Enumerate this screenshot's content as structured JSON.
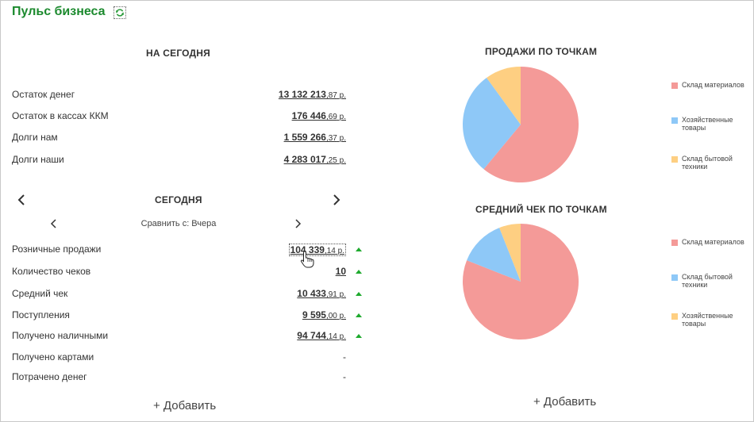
{
  "header": {
    "title": "Пульс бизнеса",
    "refresh_icon": "refresh-icon"
  },
  "balances": {
    "title": "НА СЕГОДНЯ",
    "rows": [
      {
        "label": "Остаток денег",
        "int": "13 132 213",
        "frac": ",87",
        "cur": " р."
      },
      {
        "label": "Остаток в кассах ККМ",
        "int": "176 446",
        "frac": ",69",
        "cur": " р."
      },
      {
        "label": "Долги нам",
        "int": "1 559 266",
        "frac": ",37",
        "cur": " р."
      },
      {
        "label": "Долги наши",
        "int": "4 283 017",
        "frac": ",25",
        "cur": " р."
      }
    ]
  },
  "period": {
    "title": "СЕГОДНЯ",
    "compare_label": "Сравнить с: Вчера",
    "rows": [
      {
        "label": "Розничные продажи",
        "int": "104 339",
        "frac": ",14",
        "cur": " р.",
        "trend": "up"
      },
      {
        "label": "Количество чеков",
        "int": "10",
        "frac": "",
        "cur": "",
        "trend": "up"
      },
      {
        "label": "Средний чек",
        "int": "10 433",
        "frac": ",91",
        "cur": " р.",
        "trend": "up"
      },
      {
        "label": "Поступления",
        "int": "9 595",
        "frac": ",00",
        "cur": " р.",
        "trend": "up"
      },
      {
        "label": "Получено наличными",
        "int": "94 744",
        "frac": ",14",
        "cur": " р.",
        "trend": "up"
      },
      {
        "label": "Получено картами",
        "int": "-",
        "frac": "",
        "cur": ""
      },
      {
        "label": "Потрачено денег",
        "int": "-",
        "frac": "",
        "cur": ""
      }
    ]
  },
  "add_label": "+ Добавить",
  "colors": {
    "red": "#f49a98",
    "blue": "#8ec8f7",
    "yellow": "#fecf82",
    "green": "#1c8a2e",
    "trend_up": "#1faa2e"
  },
  "chart_data": [
    {
      "type": "pie",
      "title": "ПРОДАЖИ ПО ТОЧКАМ",
      "series": [
        {
          "name": "Склад материалов",
          "value": 61,
          "color": "#f49a98"
        },
        {
          "name": "Хозяйственные товары",
          "value": 29,
          "color": "#8ec8f7"
        },
        {
          "name": "Склад бытовой техники",
          "value": 10,
          "color": "#fecf82"
        }
      ],
      "legend_position": "right"
    },
    {
      "type": "pie",
      "title": "СРЕДНИЙ ЧЕК ПО ТОЧКАМ",
      "series": [
        {
          "name": "Склад материалов",
          "value": 81,
          "color": "#f49a98"
        },
        {
          "name": "Склад бытовой техники",
          "value": 13,
          "color": "#8ec8f7"
        },
        {
          "name": "Хозяйственные товары",
          "value": 6,
          "color": "#fecf82"
        }
      ],
      "legend_position": "right"
    }
  ]
}
